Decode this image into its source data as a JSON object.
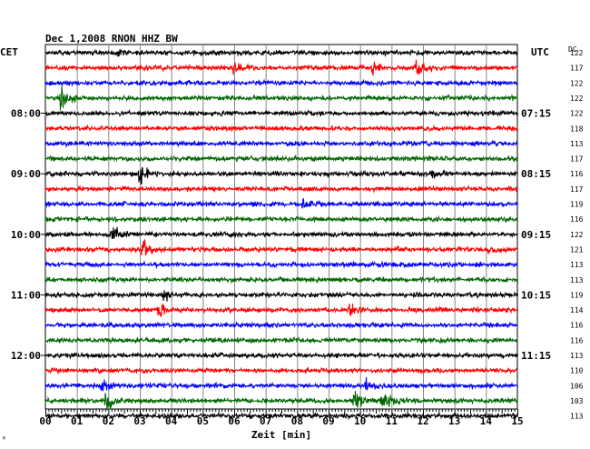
{
  "header": {
    "title": "Dec 1,2008   RNON HHZ BW",
    "left_zone": "CET",
    "right_zone": "UTC",
    "dc_label": "DC"
  },
  "footer": {
    "xlabel": "Zeit [min]",
    "corner_mark": "ᴹ"
  },
  "chart_data": {
    "type": "line",
    "title": "Dec 1,2008   RNON HHZ BW",
    "xlabel": "Zeit [min]",
    "xlim": [
      0,
      15
    ],
    "x_ticks": [
      "00",
      "01",
      "02",
      "03",
      "04",
      "05",
      "06",
      "07",
      "08",
      "09",
      "10",
      "11",
      "12",
      "13",
      "14",
      "15"
    ],
    "grid": true,
    "trace_colors": [
      "#000000",
      "#ff0000",
      "#0000ff",
      "#006600"
    ],
    "left_time_labels": [
      {
        "trace": 4,
        "label": "08:00"
      },
      {
        "trace": 8,
        "label": "09:00"
      },
      {
        "trace": 12,
        "label": "10:00"
      },
      {
        "trace": 16,
        "label": "11:00"
      },
      {
        "trace": 20,
        "label": "12:00"
      }
    ],
    "right_time_labels": [
      {
        "trace": 4,
        "label": "07:15"
      },
      {
        "trace": 8,
        "label": "08:15"
      },
      {
        "trace": 12,
        "label": "09:15"
      },
      {
        "trace": 16,
        "label": "10:15"
      },
      {
        "trace": 20,
        "label": "11:15"
      }
    ],
    "dc_offsets": [
      122,
      117,
      122,
      122,
      122,
      118,
      113,
      117,
      116,
      117,
      119,
      116,
      122,
      121,
      113,
      113,
      119,
      114,
      116,
      116,
      113,
      110,
      106,
      103,
      113
    ],
    "events": [
      {
        "trace": 0,
        "minute": 2.3,
        "amplitude": 1.3
      },
      {
        "trace": 1,
        "minute": 6.0,
        "amplitude": 1.3
      },
      {
        "trace": 1,
        "minute": 11.8,
        "amplitude": 2.2
      },
      {
        "trace": 1,
        "minute": 10.4,
        "amplitude": 1.2
      },
      {
        "trace": 3,
        "minute": 0.5,
        "amplitude": 2.8
      },
      {
        "trace": 8,
        "minute": 3.0,
        "amplitude": 2.6
      },
      {
        "trace": 8,
        "minute": 12.3,
        "amplitude": 1.3
      },
      {
        "trace": 10,
        "minute": 8.2,
        "amplitude": 1.2
      },
      {
        "trace": 12,
        "minute": 2.1,
        "amplitude": 2.6
      },
      {
        "trace": 13,
        "minute": 3.1,
        "amplitude": 1.8
      },
      {
        "trace": 13,
        "minute": 14.1,
        "amplitude": 1.2
      },
      {
        "trace": 16,
        "minute": 3.8,
        "amplitude": 1.2
      },
      {
        "trace": 17,
        "minute": 3.6,
        "amplitude": 2.0
      },
      {
        "trace": 17,
        "minute": 9.7,
        "amplitude": 2.2
      },
      {
        "trace": 22,
        "minute": 1.8,
        "amplitude": 1.4
      },
      {
        "trace": 22,
        "minute": 10.2,
        "amplitude": 2.0
      },
      {
        "trace": 23,
        "minute": 1.9,
        "amplitude": 2.6
      },
      {
        "trace": 23,
        "minute": 9.8,
        "amplitude": 3.0
      },
      {
        "trace": 23,
        "minute": 10.7,
        "amplitude": 2.4
      }
    ]
  }
}
